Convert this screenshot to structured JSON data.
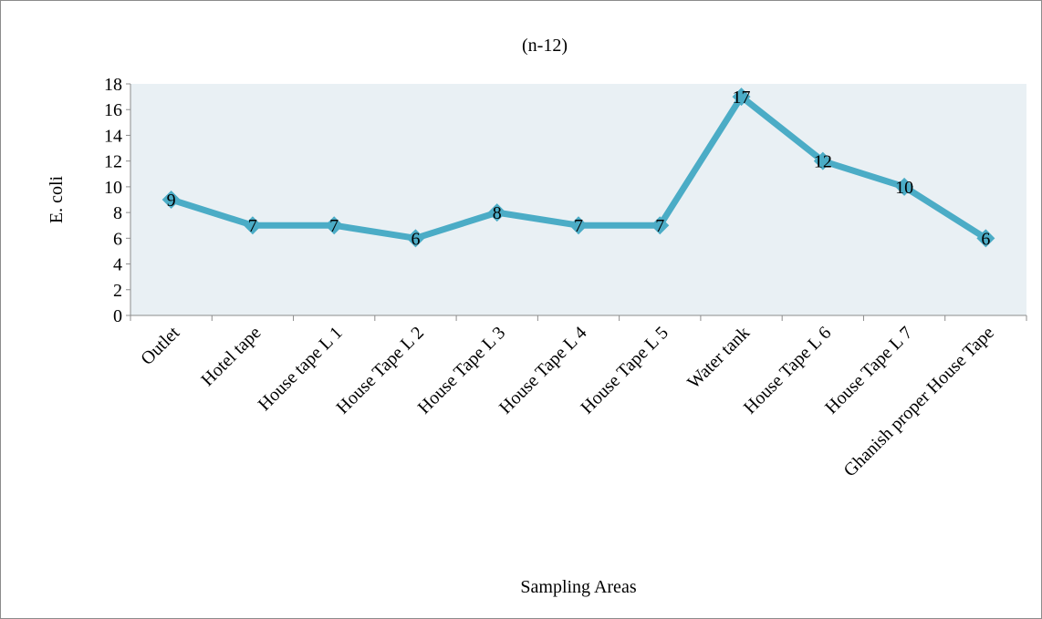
{
  "chart_data": {
    "type": "line",
    "title": "(n-12)",
    "xlabel": "Sampling Areas",
    "ylabel": "E. coli",
    "categories": [
      "Outlet",
      "Hotel tape",
      "House tape L 1",
      "House Tape L 2",
      "House Tape L 3",
      "House Tape L 4",
      "House Tape L 5",
      "Water tank",
      "House Tape L 6",
      "House Tape L 7",
      "Ghanish proper House Tape"
    ],
    "series": [
      {
        "values": [
          9,
          7,
          7,
          6,
          8,
          7,
          7,
          17,
          12,
          10,
          6
        ]
      }
    ],
    "ylim": [
      0,
      18
    ],
    "yticks": [
      0,
      2,
      4,
      6,
      8,
      10,
      12,
      14,
      16,
      18
    ],
    "data_labels": true,
    "grid": false,
    "legend": "none",
    "colors": {
      "line": "#4bacc6",
      "plot_background": "#e9f0f4",
      "frame": "#8c8c8c"
    }
  }
}
